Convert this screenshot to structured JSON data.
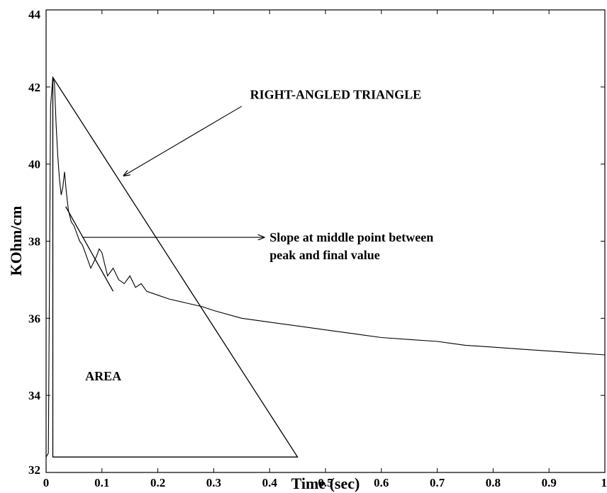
{
  "chart_data": {
    "type": "line",
    "title": "",
    "xlabel": "Time (sec)",
    "ylabel": "KOhm/cm",
    "xlim": [
      0,
      1
    ],
    "ylim": [
      32,
      44
    ],
    "x_ticks": [
      0,
      0.1,
      0.2,
      0.3,
      0.4,
      0.5,
      0.6,
      0.7,
      0.8,
      0.9,
      1
    ],
    "x_tick_labels": [
      "0",
      "0.1",
      "0.2",
      "0.3",
      "0.4",
      "0.5",
      "0.6",
      "0.7",
      "0.8",
      "0.9",
      "1"
    ],
    "y_ticks": [
      32,
      34,
      36,
      38,
      40,
      42,
      44
    ],
    "y_tick_labels": [
      "32",
      "34",
      "36",
      "38",
      "40",
      "42",
      "44"
    ],
    "grid": false,
    "legend": "none",
    "series": [
      {
        "x": [
          0.0,
          0.004,
          0.008,
          0.012,
          0.015,
          0.018,
          0.021,
          0.024,
          0.027,
          0.03,
          0.033,
          0.036,
          0.04,
          0.045,
          0.05,
          0.055,
          0.06,
          0.065,
          0.07,
          0.075,
          0.08,
          0.085,
          0.09,
          0.095,
          0.1,
          0.105,
          0.11,
          0.12,
          0.13,
          0.14,
          0.15,
          0.16,
          0.17,
          0.18,
          0.2,
          0.22,
          0.25,
          0.28,
          0.3,
          0.35,
          0.4,
          0.45,
          0.5,
          0.55,
          0.6,
          0.65,
          0.7,
          0.75,
          0.8,
          0.85,
          0.9,
          0.95,
          1.0
        ],
        "y": [
          32.4,
          32.5,
          41.5,
          42.25,
          42.1,
          41.0,
          40.2,
          39.6,
          39.2,
          39.4,
          39.8,
          39.3,
          38.8,
          38.5,
          38.4,
          38.2,
          38.0,
          37.9,
          37.7,
          37.5,
          37.3,
          37.45,
          37.6,
          37.8,
          37.7,
          37.4,
          37.1,
          37.3,
          37.0,
          36.9,
          37.1,
          36.8,
          36.9,
          36.7,
          36.6,
          36.5,
          36.4,
          36.3,
          36.2,
          36.0,
          35.9,
          35.8,
          35.7,
          35.6,
          35.5,
          35.45,
          35.4,
          35.3,
          35.25,
          35.2,
          35.15,
          35.1,
          35.05
        ]
      }
    ],
    "triangle": {
      "x": [
        0.012,
        0.012,
        0.45
      ],
      "y": [
        42.25,
        32.4,
        32.4
      ]
    },
    "tangent": {
      "x": [
        0.035,
        0.12
      ],
      "y": [
        38.9,
        36.7
      ]
    },
    "annotations": [
      {
        "lines": [
          "RIGHT-ANGLED TRIANGLE"
        ],
        "text_x": 0.365,
        "text_y": 41.8,
        "arrow_from": [
          0.35,
          41.5
        ],
        "arrow_to": [
          0.139,
          39.7
        ]
      },
      {
        "lines": [
          "Slope at middle point between",
          "peak and final value"
        ],
        "text_x": 0.4,
        "text_y": 38.1,
        "arrow_from": [
          0.065,
          38.1
        ],
        "arrow_to": [
          0.39,
          38.1
        ]
      },
      {
        "lines": [
          "AREA"
        ],
        "text_x": 0.07,
        "text_y": 34.5
      }
    ]
  }
}
